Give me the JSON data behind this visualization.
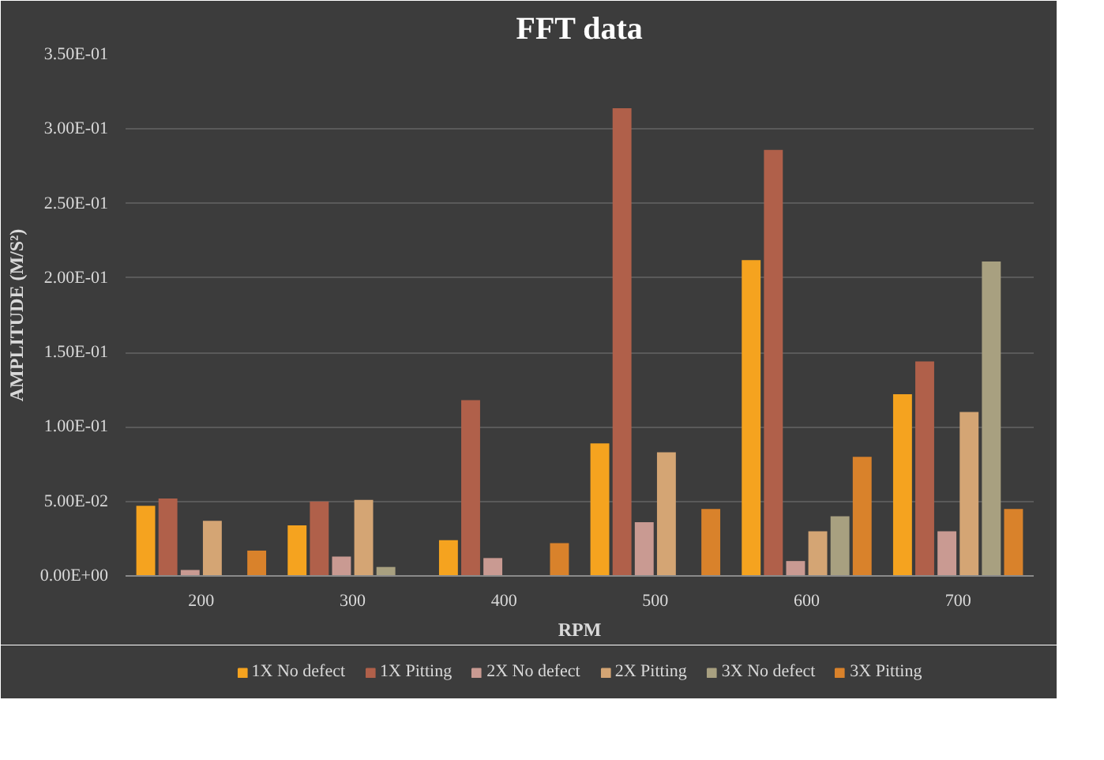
{
  "chart_data": {
    "type": "bar",
    "title": "FFT data",
    "xlabel": "RPM",
    "ylabel": "AMPLITUDE (M/S²)",
    "categories": [
      "200",
      "300",
      "400",
      "500",
      "600",
      "700"
    ],
    "series": [
      {
        "name": "1X No defect",
        "color": "#f5a31f",
        "values": [
          0.047,
          0.034,
          0.024,
          0.089,
          0.212,
          0.122
        ]
      },
      {
        "name": "1X Pitting",
        "color": "#b0604a",
        "values": [
          0.052,
          0.05,
          0.118,
          0.314,
          0.286,
          0.144
        ]
      },
      {
        "name": "2X No defect",
        "color": "#c99a92",
        "values": [
          0.004,
          0.013,
          0.012,
          0.036,
          0.01,
          0.03
        ]
      },
      {
        "name": "2X Pitting",
        "color": "#d4a574",
        "values": [
          0.037,
          0.051,
          0,
          0.083,
          0.03,
          0.11
        ]
      },
      {
        "name": "3X No defect",
        "color": "#a8a080",
        "values": [
          0,
          0.006,
          0,
          0,
          0.04,
          0.211
        ]
      },
      {
        "name": "3X Pitting",
        "color": "#d9822b",
        "values": [
          0.017,
          0,
          0.022,
          0.045,
          0.08,
          0.045
        ]
      }
    ],
    "ylim": [
      0,
      0.35
    ],
    "yticks": [
      {
        "value": 0,
        "label": "0.00E+00"
      },
      {
        "value": 0.05,
        "label": "5.00E-02"
      },
      {
        "value": 0.1,
        "label": "1.00E-01"
      },
      {
        "value": 0.15,
        "label": "1.50E-01"
      },
      {
        "value": 0.2,
        "label": "2.00E-01"
      },
      {
        "value": 0.25,
        "label": "2.50E-01"
      },
      {
        "value": 0.3,
        "label": "3.00E-01"
      },
      {
        "value": 0.35,
        "label": "3.50E-01"
      }
    ],
    "grid": "y",
    "legend": "bottom"
  }
}
